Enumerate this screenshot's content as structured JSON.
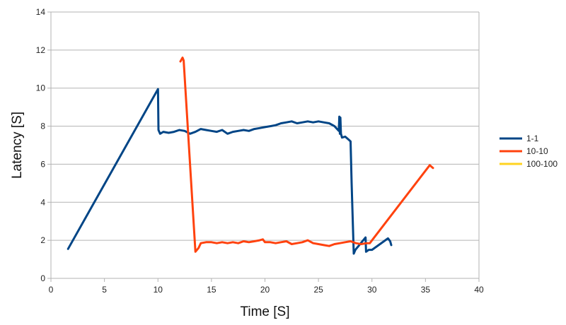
{
  "chart_data": {
    "type": "line",
    "title": "",
    "xlabel": "Time [S]",
    "ylabel": "Latency [S]",
    "xlim": [
      0,
      40
    ],
    "ylim": [
      0,
      14
    ],
    "xticks": [
      0,
      5,
      10,
      15,
      20,
      25,
      30,
      35,
      40
    ],
    "yticks": [
      0,
      2,
      4,
      6,
      8,
      10,
      12,
      14
    ],
    "grid": "horizontal",
    "legend_position": "right",
    "series": [
      {
        "name": "1-1",
        "color": "#004586",
        "x": [
          1.6,
          10.0,
          10.05,
          10.2,
          10.5,
          11.0,
          11.5,
          12.0,
          12.5,
          13.0,
          13.5,
          14.0,
          14.5,
          15.0,
          15.5,
          16.0,
          16.5,
          17.0,
          17.5,
          18.0,
          18.5,
          19.0,
          19.5,
          20.0,
          20.5,
          21.0,
          21.5,
          22.0,
          22.5,
          23.0,
          23.5,
          24.0,
          24.5,
          25.0,
          25.5,
          26.0,
          26.5,
          26.9,
          26.95,
          27.0,
          27.05,
          27.1,
          27.2,
          27.5,
          27.8,
          28.0,
          28.1,
          28.3,
          28.45,
          29.4,
          29.45,
          29.7,
          30.0,
          31.5,
          31.7,
          31.8
        ],
        "y": [
          1.55,
          9.95,
          7.8,
          7.6,
          7.7,
          7.65,
          7.7,
          7.8,
          7.75,
          7.6,
          7.7,
          7.85,
          7.8,
          7.75,
          7.7,
          7.8,
          7.6,
          7.7,
          7.75,
          7.8,
          7.75,
          7.85,
          7.9,
          7.95,
          8.0,
          8.05,
          8.15,
          8.2,
          8.25,
          8.15,
          8.2,
          8.25,
          8.2,
          8.25,
          8.2,
          8.15,
          8.0,
          7.75,
          8.5,
          7.6,
          8.45,
          7.6,
          7.4,
          7.45,
          7.3,
          7.2,
          5.0,
          1.3,
          1.5,
          2.15,
          1.4,
          1.5,
          1.5,
          2.1,
          1.95,
          1.75
        ]
      },
      {
        "name": "10-10",
        "color": "#ff420e",
        "x": [
          12.1,
          12.3,
          12.4,
          13.5,
          13.8,
          14.0,
          14.5,
          15.0,
          15.5,
          16.0,
          16.5,
          17.0,
          17.5,
          18.0,
          18.5,
          19.0,
          19.5,
          19.8,
          20.0,
          20.5,
          21.0,
          21.5,
          22.0,
          22.5,
          23.0,
          23.5,
          24.0,
          24.5,
          25.0,
          25.5,
          26.0,
          26.5,
          27.0,
          27.5,
          28.0,
          28.5,
          29.0,
          29.5,
          29.8,
          35.4,
          35.6,
          35.7
        ],
        "y": [
          11.4,
          11.6,
          11.45,
          1.4,
          1.6,
          1.85,
          1.9,
          1.9,
          1.85,
          1.9,
          1.85,
          1.9,
          1.85,
          1.95,
          1.9,
          1.95,
          2.0,
          2.05,
          1.9,
          1.9,
          1.85,
          1.9,
          1.95,
          1.8,
          1.85,
          1.9,
          2.0,
          1.85,
          1.8,
          1.75,
          1.7,
          1.8,
          1.85,
          1.9,
          1.95,
          1.85,
          1.8,
          1.85,
          1.85,
          5.95,
          5.85,
          5.8
        ]
      },
      {
        "name": "100-100",
        "color": "#ffd320",
        "x": [],
        "y": []
      }
    ]
  }
}
